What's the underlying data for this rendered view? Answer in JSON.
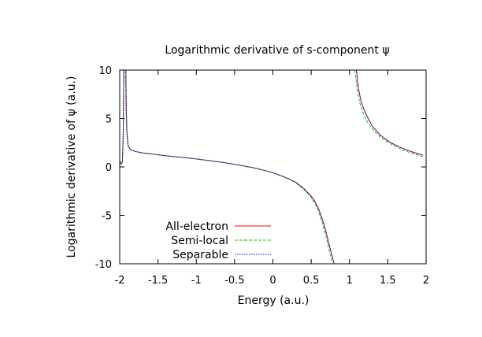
{
  "chart_data": {
    "type": "line",
    "title": "Logarithmic derivative of s-component ψ",
    "xlabel": "Energy (a.u.)",
    "ylabel": "Logarithmic derivative of ψ (a.u.)",
    "xlim": [
      -2,
      2
    ],
    "ylim": [
      -10,
      10
    ],
    "x_ticks": [
      -2,
      -1.5,
      -1,
      -0.5,
      0,
      0.5,
      1,
      1.5,
      2
    ],
    "x_tick_labels": [
      "-2",
      "-1.5",
      "-1",
      "-0.5",
      "0",
      "0.5",
      "1",
      "1.5",
      "2"
    ],
    "y_ticks": [
      -10,
      -5,
      0,
      5,
      10
    ],
    "y_tick_labels": [
      "-10",
      "-5",
      "0",
      "5",
      "10"
    ],
    "grid": false,
    "legend_position": "bottom-left",
    "series": [
      {
        "name": "All-electron",
        "color": "#ff0000",
        "dash": "solid",
        "segments": [
          [
            [
              -2.0,
              0.6
            ],
            [
              -1.98,
              0.3
            ],
            [
              -1.965,
              0.5
            ],
            [
              -1.955,
              3.0
            ],
            [
              -1.95,
              7.0
            ],
            [
              -1.947,
              10.0
            ]
          ],
          [
            [
              -1.92,
              10.0
            ],
            [
              -1.915,
              6.0
            ],
            [
              -1.905,
              3.5
            ],
            [
              -1.89,
              2.2
            ],
            [
              -1.87,
              1.9
            ],
            [
              -1.85,
              1.75
            ],
            [
              -1.8,
              1.6
            ],
            [
              -1.7,
              1.45
            ],
            [
              -1.6,
              1.35
            ],
            [
              -1.5,
              1.25
            ],
            [
              -1.4,
              1.15
            ],
            [
              -1.3,
              1.08
            ],
            [
              -1.2,
              1.0
            ],
            [
              -1.1,
              0.92
            ],
            [
              -1.0,
              0.82
            ],
            [
              -0.9,
              0.72
            ],
            [
              -0.8,
              0.62
            ],
            [
              -0.7,
              0.52
            ],
            [
              -0.6,
              0.4
            ],
            [
              -0.5,
              0.28
            ],
            [
              -0.4,
              0.13
            ],
            [
              -0.3,
              -0.02
            ],
            [
              -0.2,
              -0.18
            ],
            [
              -0.1,
              -0.38
            ],
            [
              0.0,
              -0.6
            ],
            [
              0.1,
              -0.88
            ],
            [
              0.2,
              -1.2
            ],
            [
              0.3,
              -1.6
            ],
            [
              0.4,
              -2.2
            ],
            [
              0.5,
              -3.0
            ],
            [
              0.55,
              -3.6
            ],
            [
              0.6,
              -4.4
            ],
            [
              0.65,
              -5.5
            ],
            [
              0.7,
              -6.9
            ],
            [
              0.75,
              -8.5
            ],
            [
              0.8,
              -10.0
            ]
          ],
          [
            [
              1.09,
              10.0
            ],
            [
              1.12,
              8.0
            ],
            [
              1.15,
              6.8
            ],
            [
              1.2,
              5.7
            ],
            [
              1.25,
              4.9
            ],
            [
              1.3,
              4.2
            ],
            [
              1.4,
              3.3
            ],
            [
              1.5,
              2.7
            ],
            [
              1.6,
              2.25
            ],
            [
              1.7,
              1.9
            ],
            [
              1.8,
              1.6
            ],
            [
              1.9,
              1.35
            ],
            [
              1.96,
              1.2
            ]
          ]
        ]
      },
      {
        "name": "Semi-local",
        "color": "#00cc00",
        "dash": "dashed",
        "segments": [
          [
            [
              -2.0,
              0.7
            ],
            [
              -1.98,
              0.35
            ],
            [
              -1.965,
              0.55
            ],
            [
              -1.955,
              3.2
            ],
            [
              -1.95,
              7.2
            ],
            [
              -1.946,
              10.0
            ]
          ],
          [
            [
              -1.925,
              10.0
            ],
            [
              -1.918,
              6.0
            ],
            [
              -1.907,
              3.5
            ],
            [
              -1.892,
              2.2
            ],
            [
              -1.872,
              1.9
            ],
            [
              -1.85,
              1.75
            ],
            [
              -1.8,
              1.6
            ],
            [
              -1.7,
              1.45
            ],
            [
              -1.6,
              1.35
            ],
            [
              -1.5,
              1.25
            ],
            [
              -1.4,
              1.15
            ],
            [
              -1.3,
              1.08
            ],
            [
              -1.2,
              1.0
            ],
            [
              -1.1,
              0.92
            ],
            [
              -1.0,
              0.82
            ],
            [
              -0.9,
              0.72
            ],
            [
              -0.8,
              0.62
            ],
            [
              -0.7,
              0.52
            ],
            [
              -0.6,
              0.4
            ],
            [
              -0.5,
              0.28
            ],
            [
              -0.4,
              0.13
            ],
            [
              -0.3,
              -0.02
            ],
            [
              -0.2,
              -0.18
            ],
            [
              -0.1,
              -0.38
            ],
            [
              0.0,
              -0.6
            ],
            [
              0.1,
              -0.9
            ],
            [
              0.2,
              -1.23
            ],
            [
              0.3,
              -1.65
            ],
            [
              0.4,
              -2.3
            ],
            [
              0.5,
              -3.15
            ],
            [
              0.55,
              -3.8
            ],
            [
              0.6,
              -4.7
            ],
            [
              0.65,
              -5.9
            ],
            [
              0.7,
              -7.4
            ],
            [
              0.75,
              -9.1
            ],
            [
              0.78,
              -10.0
            ]
          ],
          [
            [
              1.07,
              10.0
            ],
            [
              1.1,
              8.0
            ],
            [
              1.13,
              6.7
            ],
            [
              1.18,
              5.5
            ],
            [
              1.23,
              4.7
            ],
            [
              1.3,
              3.9
            ],
            [
              1.4,
              3.1
            ],
            [
              1.5,
              2.55
            ],
            [
              1.6,
              2.1
            ],
            [
              1.7,
              1.75
            ],
            [
              1.8,
              1.45
            ],
            [
              1.9,
              1.2
            ],
            [
              1.96,
              1.05
            ]
          ]
        ]
      },
      {
        "name": "Separable",
        "color": "#0000ff",
        "dash": "dotted",
        "segments": [
          [
            [
              -2.0,
              0.6
            ],
            [
              -1.98,
              0.3
            ],
            [
              -1.965,
              0.5
            ],
            [
              -1.955,
              3.0
            ],
            [
              -1.95,
              7.0
            ],
            [
              -1.947,
              10.0
            ]
          ],
          [
            [
              -1.92,
              10.0
            ],
            [
              -1.915,
              6.0
            ],
            [
              -1.905,
              3.5
            ],
            [
              -1.89,
              2.2
            ],
            [
              -1.87,
              1.9
            ],
            [
              -1.85,
              1.75
            ],
            [
              -1.8,
              1.6
            ],
            [
              -1.7,
              1.45
            ],
            [
              -1.6,
              1.35
            ],
            [
              -1.5,
              1.25
            ],
            [
              -1.4,
              1.15
            ],
            [
              -1.3,
              1.08
            ],
            [
              -1.2,
              1.0
            ],
            [
              -1.1,
              0.92
            ],
            [
              -1.0,
              0.82
            ],
            [
              -0.9,
              0.72
            ],
            [
              -0.8,
              0.62
            ],
            [
              -0.7,
              0.52
            ],
            [
              -0.6,
              0.4
            ],
            [
              -0.5,
              0.28
            ],
            [
              -0.4,
              0.13
            ],
            [
              -0.3,
              -0.02
            ],
            [
              -0.2,
              -0.18
            ],
            [
              -0.1,
              -0.38
            ],
            [
              0.0,
              -0.6
            ],
            [
              0.1,
              -0.88
            ],
            [
              0.2,
              -1.2
            ],
            [
              0.3,
              -1.6
            ],
            [
              0.4,
              -2.2
            ],
            [
              0.5,
              -3.0
            ],
            [
              0.55,
              -3.6
            ],
            [
              0.6,
              -4.4
            ],
            [
              0.65,
              -5.5
            ],
            [
              0.7,
              -6.9
            ],
            [
              0.75,
              -8.5
            ],
            [
              0.8,
              -10.0
            ]
          ],
          [
            [
              1.09,
              10.0
            ],
            [
              1.12,
              8.0
            ],
            [
              1.15,
              6.8
            ],
            [
              1.2,
              5.7
            ],
            [
              1.25,
              4.9
            ],
            [
              1.3,
              4.2
            ],
            [
              1.4,
              3.3
            ],
            [
              1.5,
              2.7
            ],
            [
              1.6,
              2.25
            ],
            [
              1.7,
              1.9
            ],
            [
              1.8,
              1.6
            ],
            [
              1.9,
              1.35
            ],
            [
              1.96,
              1.2
            ]
          ]
        ]
      }
    ]
  }
}
